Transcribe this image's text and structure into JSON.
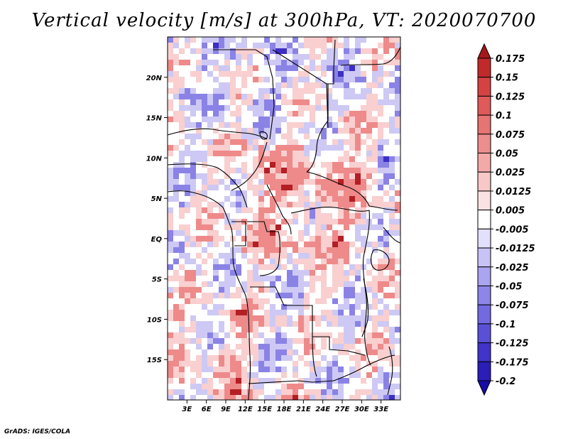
{
  "title": "Vertical velocity [m/s] at 300hPa, VT: 2020070700",
  "credit": "GrADS: IGES/COLA",
  "map": {
    "lon_range": [
      0,
      36
    ],
    "lat_range": [
      -20,
      25
    ],
    "lon_ticks": [
      3,
      6,
      9,
      12,
      15,
      18,
      21,
      24,
      27,
      30,
      33
    ],
    "lon_tick_labels": [
      "3E",
      "6E",
      "9E",
      "12E",
      "15E",
      "18E",
      "21E",
      "24E",
      "27E",
      "30E",
      "33E"
    ],
    "lat_ticks": [
      20,
      15,
      10,
      5,
      0,
      -5,
      -10,
      -15
    ],
    "lat_tick_labels": [
      "20N",
      "15N",
      "10N",
      "5N",
      "EQ",
      "5S",
      "10S",
      "15S"
    ],
    "frame_color": "#000000",
    "border_color": "#000000",
    "field_colors": {
      "strong_up": "#b21f24",
      "up": "#ee8a8a",
      "weak_up": "#f9cfcf",
      "neutral": "#ffffff",
      "weak_down": "#cdc9f4",
      "down": "#8b82e6",
      "strong_down": "#3d2fc4"
    }
  },
  "colorbar": {
    "levels": [
      "0.175",
      "0.15",
      "0.125",
      "0.1",
      "0.075",
      "0.05",
      "0.025",
      "0.0125",
      "0.005",
      "-0.005",
      "-0.0125",
      "-0.025",
      "-0.05",
      "-0.075",
      "-0.1",
      "-0.125",
      "-0.175",
      "-0.2"
    ],
    "colors": [
      "#a6171c",
      "#c12a2a",
      "#d64242",
      "#e05a5a",
      "#e77373",
      "#ee8d8d",
      "#f4a9a9",
      "#f8c7c7",
      "#fbe2e2",
      "#ffffff",
      "#e2e0fb",
      "#c8c3f6",
      "#aba4f0",
      "#8e85ea",
      "#736ae2",
      "#5a50d8",
      "#4034ca",
      "#2a1db8",
      "#180ca6"
    ]
  }
}
